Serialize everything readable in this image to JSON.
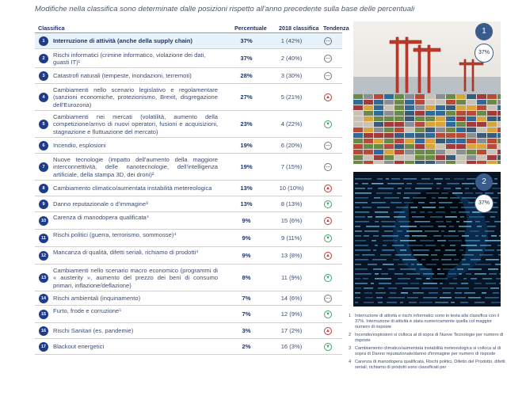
{
  "subtitle": "Modifiche nella classifica sono determinate dalle posizioni rispetto all'anno precedente sulla base delle percentuali",
  "table": {
    "headers": {
      "ranking": "Classifica",
      "percent": "Percentuale",
      "prev": "2018 classifica",
      "trend": "Tendenza"
    },
    "rows": [
      {
        "n": "1",
        "label": "Interruzione di attività (anche della supply chain)",
        "pct": "37%",
        "prev": "1 (42%)",
        "trend": "same"
      },
      {
        "n": "2",
        "label": "Rischi informatici (crimine informatico, violazione dei dati, guasti IT)¹",
        "pct": "37%",
        "prev": "2 (40%)",
        "trend": "same"
      },
      {
        "n": "3",
        "label": "Catastrofi naturali (tempeste, inondazioni, terremoti)",
        "pct": "28%",
        "prev": "3 (30%)",
        "trend": "same"
      },
      {
        "n": "4",
        "label": "Cambiamenti nello scenario legislativo e regolamentare (sanzioni economiche, protezionismo, Brexit, disgregazione dell'Eurozona)",
        "pct": "27%",
        "prev": "5 (21%)",
        "trend": "up"
      },
      {
        "n": "5",
        "label": "Cambiamenti nei mercati (volatilità, aumento della competizione/arrivo di nuovi operatori, fusioni e acquisizioni, stagnazione e fluttuazione del mercato)",
        "pct": "23%",
        "prev": "4 (22%)",
        "trend": "down"
      },
      {
        "n": "6",
        "label": "Incendio, esplosioni",
        "pct": "19%",
        "prev": "6 (20%)",
        "trend": "same"
      },
      {
        "n": "7",
        "label": "Nuove tecnologie (impatto dell'aumento della maggiore interconnettività, delle nanotecnologie, dell'intelligenza artificiale, della stampa 3D, dei droni)²",
        "pct": "19%",
        "prev": "7 (15%)",
        "trend": "same"
      },
      {
        "n": "8",
        "label": "Cambiamento climatico/aumentata instabilità metereologica",
        "pct": "13%",
        "prev": "10 (10%)",
        "trend": "up"
      },
      {
        "n": "9",
        "label": "Danno reputazionale o d'immagine³",
        "pct": "13%",
        "prev": "8 (13%)",
        "trend": "down"
      },
      {
        "n": "10",
        "label": "Carenza di manodopera qualificata⁴",
        "pct": "9%",
        "prev": "15 (6%)",
        "trend": "up"
      },
      {
        "n": "11",
        "label": "Rischi politici (guerra, terrorismo, sommosse)⁴",
        "pct": "9%",
        "prev": "9 (11%)",
        "trend": "down"
      },
      {
        "n": "12",
        "label": "Mancanza di qualità, difetti seriali, richiamo di prodotti⁴",
        "pct": "9%",
        "prev": "13 (8%)",
        "trend": "up"
      },
      {
        "n": "13",
        "label": "Cambiamenti nello scenario macro economico (programmi di « austerity », aumento del prezzo dei beni di consumo primari, inflazione/deflazione)",
        "pct": "8%",
        "prev": "11 (9%)",
        "trend": "down"
      },
      {
        "n": "14",
        "label": "Rischi ambientali (inquinamento)",
        "pct": "7%",
        "prev": "14 (6%)",
        "trend": "same"
      },
      {
        "n": "15",
        "label": "Furto, frode e corruzione⁵",
        "pct": "7%",
        "prev": "12 (9%)",
        "trend": "down"
      },
      {
        "n": "16",
        "label": "Rischi Sanitari (es. pandemie)",
        "pct": "3%",
        "prev": "17 (2%)",
        "trend": "up"
      },
      {
        "n": "17",
        "label": "Blackout energetici",
        "pct": "2%",
        "prev": "16 (3%)",
        "trend": "down"
      }
    ]
  },
  "images": [
    {
      "badge": "1",
      "percent": "37%",
      "subject": "container-port"
    },
    {
      "badge": "2",
      "percent": "37%",
      "subject": "cyber-data"
    }
  ],
  "footnotes": [
    {
      "n": "1",
      "text": "Interruzione di attività e rischi informatici sono in testa alla classifica con il 37%. Interruzione di attività è stata numericamente quella col maggior numero di risposte"
    },
    {
      "n": "2",
      "text": "Incendio/esplosioni si colloca al di sopra di Nuove Tecnologie per numero di risposte"
    },
    {
      "n": "3",
      "text": "Cambiamento climatico/aumentata instabilità metereologica si colloca al di sopra di Danno reputazionale/danno d'immagine per numero di risposte"
    },
    {
      "n": "4",
      "text": "Carenza di manodopera qualificata, Rischi politici, Difetto del Prodotto, difetti seriali, richiamo di prodotti sono classificati per"
    }
  ],
  "colors": {
    "navy": "#1f3c88",
    "highlight": "#e8f2fa",
    "up": "#c63a3a",
    "down": "#3aa56a"
  }
}
